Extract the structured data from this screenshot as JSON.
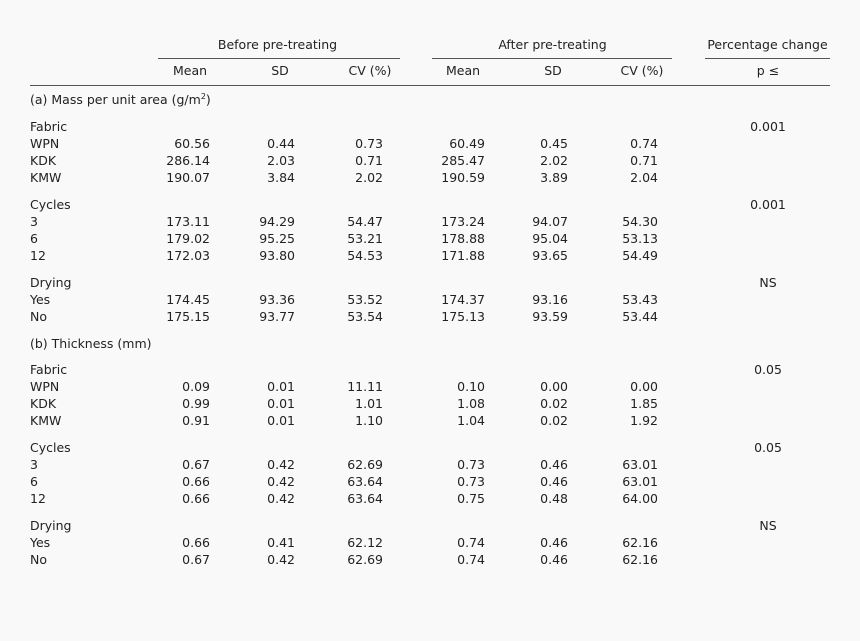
{
  "header": {
    "before_label": "Before pre-treating",
    "after_label": "After pre-treating",
    "pct_label": "Percentage change",
    "cols": {
      "mean_before": "Mean",
      "sd_before": "SD",
      "cv_before": "CV (%)",
      "mean_after": "Mean",
      "sd_after": "SD",
      "cv_after": "CV (%)",
      "p": "p ≤"
    }
  },
  "sections": [
    {
      "title_main": "(a) Mass per unit area (g/m",
      "title_sup": "2",
      "title_end": ")",
      "groups": [
        {
          "label": "Fabric",
          "p": "0.001",
          "rows": [
            {
              "name": "WPN",
              "mb": "60.56",
              "sdb": "0.44",
              "cvb": "0.73",
              "ma": "60.49",
              "sda": "0.45",
              "cva": "0.74"
            },
            {
              "name": "KDK",
              "mb": "286.14",
              "sdb": "2.03",
              "cvb": "0.71",
              "ma": "285.47",
              "sda": "2.02",
              "cva": "0.71"
            },
            {
              "name": "KMW",
              "mb": "190.07",
              "sdb": "3.84",
              "cvb": "2.02",
              "ma": "190.59",
              "sda": "3.89",
              "cva": "2.04"
            }
          ]
        },
        {
          "label": "Cycles",
          "p": "0.001",
          "rows": [
            {
              "name": "3",
              "mb": "173.11",
              "sdb": "94.29",
              "cvb": "54.47",
              "ma": "173.24",
              "sda": "94.07",
              "cva": "54.30"
            },
            {
              "name": "6",
              "mb": "179.02",
              "sdb": "95.25",
              "cvb": "53.21",
              "ma": "178.88",
              "sda": "95.04",
              "cva": "53.13"
            },
            {
              "name": "12",
              "mb": "172.03",
              "sdb": "93.80",
              "cvb": "54.53",
              "ma": "171.88",
              "sda": "93.65",
              "cva": "54.49"
            }
          ]
        },
        {
          "label": "Drying",
          "p": "NS",
          "rows": [
            {
              "name": "Yes",
              "mb": "174.45",
              "sdb": "93.36",
              "cvb": "53.52",
              "ma": "174.37",
              "sda": "93.16",
              "cva": "53.43"
            },
            {
              "name": "No",
              "mb": "175.15",
              "sdb": "93.77",
              "cvb": "53.54",
              "ma": "175.13",
              "sda": "93.59",
              "cva": "53.44"
            }
          ]
        }
      ]
    },
    {
      "title_main": "(b) Thickness (mm)",
      "title_sup": "",
      "title_end": "",
      "groups": [
        {
          "label": "Fabric",
          "p": "0.05",
          "rows": [
            {
              "name": "WPN",
              "mb": "0.09",
              "sdb": "0.01",
              "cvb": "11.11",
              "ma": "0.10",
              "sda": "0.00",
              "cva": "0.00"
            },
            {
              "name": "KDK",
              "mb": "0.99",
              "sdb": "0.01",
              "cvb": "1.01",
              "ma": "1.08",
              "sda": "0.02",
              "cva": "1.85"
            },
            {
              "name": "KMW",
              "mb": "0.91",
              "sdb": "0.01",
              "cvb": "1.10",
              "ma": "1.04",
              "sda": "0.02",
              "cva": "1.92"
            }
          ]
        },
        {
          "label": "Cycles",
          "p": "0.05",
          "rows": [
            {
              "name": "3",
              "mb": "0.67",
              "sdb": "0.42",
              "cvb": "62.69",
              "ma": "0.73",
              "sda": "0.46",
              "cva": "63.01"
            },
            {
              "name": "6",
              "mb": "0.66",
              "sdb": "0.42",
              "cvb": "63.64",
              "ma": "0.73",
              "sda": "0.46",
              "cva": "63.01"
            },
            {
              "name": "12",
              "mb": "0.66",
              "sdb": "0.42",
              "cvb": "63.64",
              "ma": "0.75",
              "sda": "0.48",
              "cva": "64.00"
            }
          ]
        },
        {
          "label": "Drying",
          "p": "NS",
          "rows": [
            {
              "name": "Yes",
              "mb": "0.66",
              "sdb": "0.41",
              "cvb": "62.12",
              "ma": "0.74",
              "sda": "0.46",
              "cva": "62.16"
            },
            {
              "name": "No",
              "mb": "0.67",
              "sdb": "0.42",
              "cvb": "62.69",
              "ma": "0.74",
              "sda": "0.46",
              "cva": "62.16"
            }
          ]
        }
      ]
    }
  ]
}
